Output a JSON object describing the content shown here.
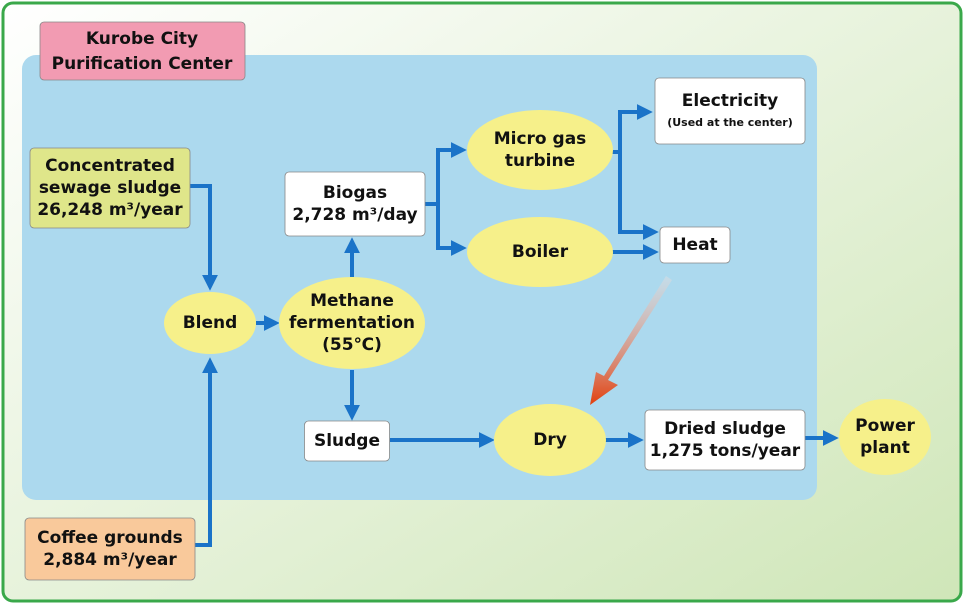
{
  "title": [
    "Kurobe City",
    "Purification Center"
  ],
  "nodes": [
    {
      "id": "sewage",
      "label": [
        "Concentrated",
        "sewage sludge",
        "26,248 m³/year"
      ]
    },
    {
      "id": "coffee",
      "label": [
        "Coffee grounds",
        "2,884 m³/year"
      ]
    },
    {
      "id": "blend",
      "label": [
        "Blend"
      ]
    },
    {
      "id": "methane",
      "label": [
        "Methane",
        "fermentation",
        "(55℃)"
      ]
    },
    {
      "id": "biogas",
      "label": [
        "Biogas",
        "2,728 m³/day"
      ]
    },
    {
      "id": "sludge",
      "label": [
        "Sludge"
      ]
    },
    {
      "id": "turbine",
      "label": [
        "Micro gas",
        "turbine"
      ]
    },
    {
      "id": "boiler",
      "label": [
        "Boiler"
      ]
    },
    {
      "id": "electricity",
      "label": [
        "Electricity",
        "(Used at the center)"
      ]
    },
    {
      "id": "heat",
      "label": [
        "Heat"
      ]
    },
    {
      "id": "dry",
      "label": [
        "Dry"
      ]
    },
    {
      "id": "dried",
      "label": [
        "Dried sludge",
        "1,275 tons/year"
      ]
    },
    {
      "id": "power",
      "label": [
        "Power",
        "plant"
      ]
    }
  ]
}
